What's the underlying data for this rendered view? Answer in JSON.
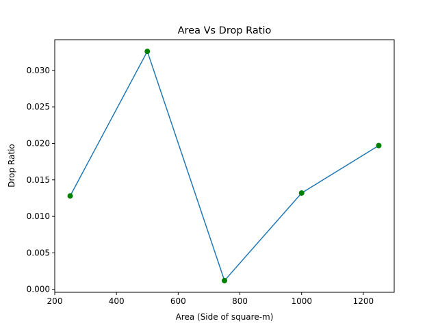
{
  "chart_data": {
    "type": "line",
    "title": "Area Vs Drop Ratio",
    "xlabel": "Area (Side of square-m)",
    "ylabel": "Drop Ratio",
    "xlim": [
      200,
      1300
    ],
    "ylim": [
      -0.0004,
      0.0342
    ],
    "x_ticks": [
      200,
      400,
      600,
      800,
      1000,
      1200
    ],
    "x_tick_labels": [
      "200",
      "400",
      "600",
      "800",
      "1000",
      "1200"
    ],
    "y_ticks": [
      0.0,
      0.005,
      0.01,
      0.015,
      0.02,
      0.025,
      0.03
    ],
    "y_tick_labels": [
      "0.000",
      "0.005",
      "0.010",
      "0.015",
      "0.020",
      "0.025",
      "0.030"
    ],
    "grid": false,
    "series": [
      {
        "x": [
          250,
          500,
          750,
          1000,
          1250
        ],
        "values": [
          0.0128,
          0.0326,
          0.0012,
          0.0132,
          0.0197
        ],
        "line_color": "#1f77b4",
        "marker_color": "#008000"
      }
    ]
  }
}
